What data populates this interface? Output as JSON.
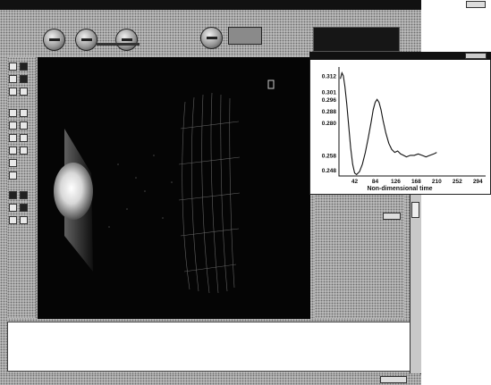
{
  "plot": {
    "xlabel": "Non-dimensional time"
  },
  "chart_data": {
    "type": "line",
    "xlabel": "Non-dimensional time",
    "ylabel": "",
    "xlim": [
      10,
      310
    ],
    "ylim": [
      0.244,
      0.318
    ],
    "xticks": [
      42,
      84,
      126,
      168,
      210,
      252,
      294
    ],
    "yticks": [
      0.312,
      0.301,
      0.296,
      0.288,
      0.28,
      0.258,
      0.248
    ],
    "grid": false,
    "series": [
      {
        "x": [
          13,
          16,
          19,
          22,
          26,
          30,
          34,
          38,
          42,
          46,
          52,
          58,
          64,
          70,
          76,
          80,
          84,
          88,
          92,
          96,
          100,
          106,
          112,
          118,
          124,
          130,
          136,
          142,
          148,
          156,
          164,
          172,
          180,
          188,
          196,
          204,
          210
        ],
        "y": [
          0.31,
          0.314,
          0.312,
          0.305,
          0.293,
          0.278,
          0.263,
          0.252,
          0.246,
          0.245,
          0.247,
          0.252,
          0.26,
          0.27,
          0.281,
          0.289,
          0.294,
          0.296,
          0.294,
          0.289,
          0.282,
          0.273,
          0.266,
          0.262,
          0.26,
          0.261,
          0.259,
          0.258,
          0.257,
          0.258,
          0.258,
          0.259,
          0.258,
          0.257,
          0.258,
          0.259,
          0.26
        ]
      }
    ]
  },
  "colors": {
    "titlebar": "#111111",
    "workspace": "#a8a8a8",
    "viewport": "#050505",
    "console": "#ffffff",
    "plot_line": "#111111"
  },
  "icons": [
    "knob-icon",
    "zoom-button-icon",
    "logo",
    "tool-icons"
  ]
}
